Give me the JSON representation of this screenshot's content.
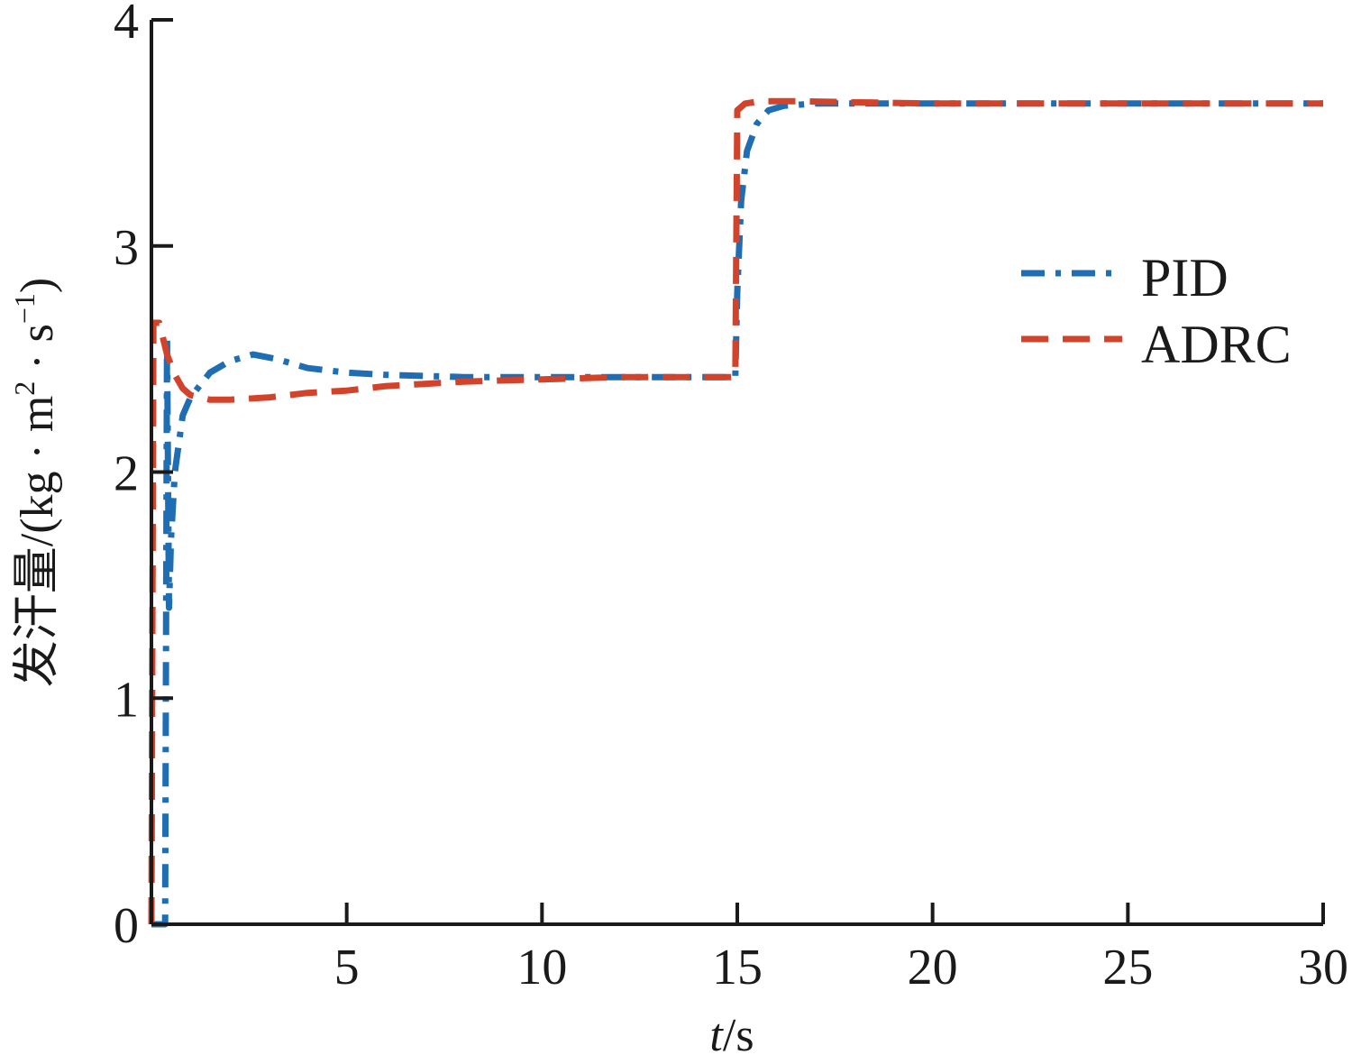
{
  "chart_data": {
    "type": "line",
    "xlabel_italic": "t",
    "xlabel_unit": "/s",
    "ylabel_main": "发汗量/(kg · m",
    "ylabel_sup1": "2",
    "ylabel_mid": " · s",
    "ylabel_sup2": "−1",
    "ylabel_end": ")",
    "xlim": [
      0,
      30
    ],
    "ylim": [
      0,
      4
    ],
    "xticks": [
      5,
      10,
      15,
      20,
      25,
      30
    ],
    "xtick_labels": [
      "5",
      "10",
      "15",
      "20",
      "25",
      "30"
    ],
    "yticks": [
      0,
      1,
      2,
      3,
      4
    ],
    "ytick_labels": [
      "0",
      "1",
      "2",
      "3",
      "4"
    ],
    "grid": false,
    "legend_position": "right-middle",
    "series": [
      {
        "name": "PID",
        "color": "#1f6db3",
        "style": "dash-dot",
        "points": [
          [
            0.0,
            0.0
          ],
          [
            0.35,
            0.0
          ],
          [
            0.4,
            2.6
          ],
          [
            0.45,
            1.4
          ],
          [
            0.5,
            1.7
          ],
          [
            0.6,
            2.0
          ],
          [
            0.8,
            2.25
          ],
          [
            1.0,
            2.33
          ],
          [
            1.5,
            2.44
          ],
          [
            2.0,
            2.49
          ],
          [
            2.6,
            2.52
          ],
          [
            3.2,
            2.5
          ],
          [
            4.0,
            2.46
          ],
          [
            5.0,
            2.44
          ],
          [
            6.0,
            2.43
          ],
          [
            8.0,
            2.42
          ],
          [
            10.0,
            2.42
          ],
          [
            12.0,
            2.42
          ],
          [
            14.0,
            2.42
          ],
          [
            14.95,
            2.42
          ],
          [
            15.0,
            2.8
          ],
          [
            15.1,
            3.2
          ],
          [
            15.25,
            3.42
          ],
          [
            15.5,
            3.54
          ],
          [
            15.8,
            3.6
          ],
          [
            16.2,
            3.62
          ],
          [
            17.0,
            3.63
          ],
          [
            20.0,
            3.63
          ],
          [
            25.0,
            3.63
          ],
          [
            30.0,
            3.63
          ]
        ]
      },
      {
        "name": "ADRC",
        "color": "#d2432b",
        "style": "dashed",
        "points": [
          [
            0.0,
            0.0
          ],
          [
            0.05,
            2.66
          ],
          [
            0.2,
            2.66
          ],
          [
            0.4,
            2.52
          ],
          [
            0.6,
            2.43
          ],
          [
            0.8,
            2.37
          ],
          [
            1.0,
            2.34
          ],
          [
            1.5,
            2.32
          ],
          [
            2.0,
            2.32
          ],
          [
            3.0,
            2.33
          ],
          [
            4.0,
            2.35
          ],
          [
            5.0,
            2.36
          ],
          [
            6.0,
            2.38
          ],
          [
            7.0,
            2.39
          ],
          [
            8.0,
            2.4
          ],
          [
            10.0,
            2.41
          ],
          [
            12.0,
            2.42
          ],
          [
            14.0,
            2.42
          ],
          [
            14.95,
            2.42
          ],
          [
            15.0,
            3.6
          ],
          [
            15.2,
            3.63
          ],
          [
            15.6,
            3.64
          ],
          [
            16.5,
            3.64
          ],
          [
            20.0,
            3.63
          ],
          [
            25.0,
            3.63
          ],
          [
            30.0,
            3.63
          ]
        ]
      }
    ]
  }
}
